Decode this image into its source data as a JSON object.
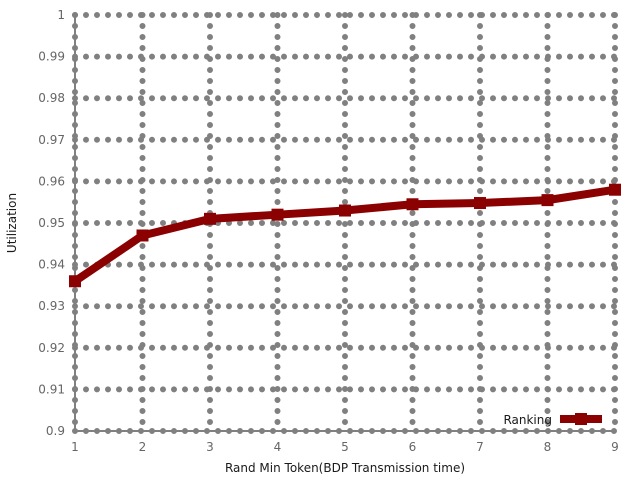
{
  "chart_data": {
    "type": "line",
    "title": "",
    "xlabel": "Rand Min Token(BDP Transmission time)",
    "ylabel": "Utilization",
    "xlim": [
      1,
      9
    ],
    "ylim": [
      0.9,
      1.0
    ],
    "x_ticks": [
      1,
      2,
      3,
      4,
      5,
      6,
      7,
      8,
      9
    ],
    "y_ticks": [
      0.9,
      0.91,
      0.92,
      0.93,
      0.94,
      0.95,
      0.96,
      0.97,
      0.98,
      0.99,
      1
    ],
    "grid": true,
    "legend_position": "bottom-right",
    "series": [
      {
        "name": "Ranking",
        "color": "#8b0000",
        "marker": "square",
        "x": [
          1,
          2,
          3,
          4,
          5,
          6,
          7,
          8,
          9
        ],
        "values": [
          0.936,
          0.947,
          0.951,
          0.952,
          0.953,
          0.9545,
          0.9548,
          0.9555,
          0.958
        ]
      }
    ]
  }
}
